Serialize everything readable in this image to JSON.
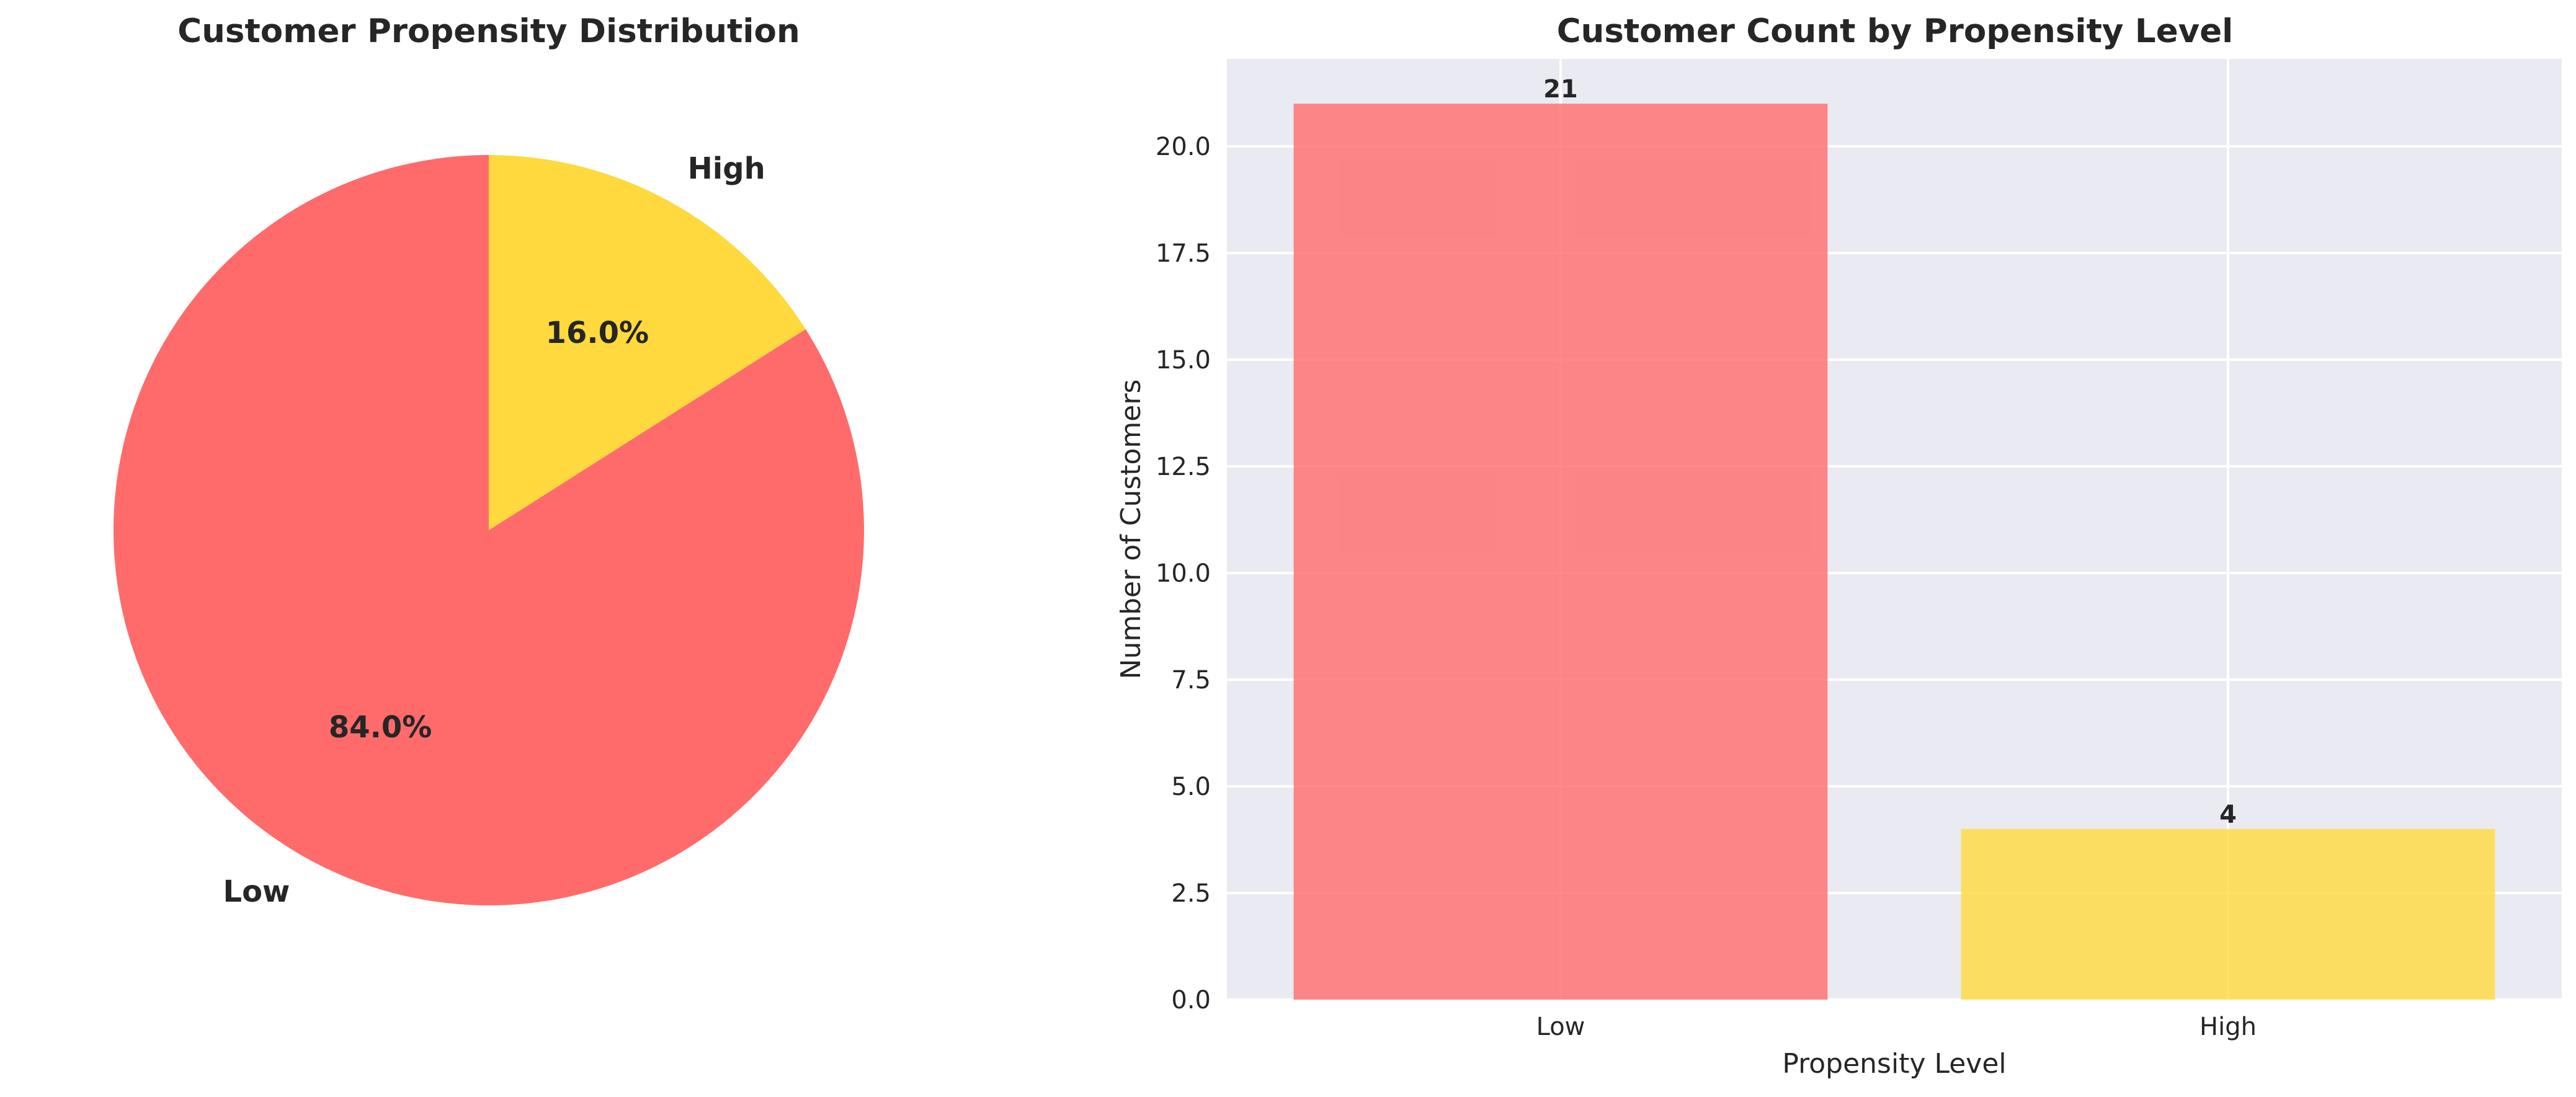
{
  "chart_data": [
    {
      "type": "pie",
      "title": "Customer Propensity Distribution",
      "labels": [
        "Low",
        "High"
      ],
      "values": [
        84.0,
        16.0
      ],
      "percent_labels": [
        "84.0%",
        "16.0%"
      ],
      "colors": [
        "#ff6b6b",
        "#ffd93d"
      ],
      "start_angle_deg": 90,
      "direction": "counterclockwise"
    },
    {
      "type": "bar",
      "title": "Customer Count by Propensity Level",
      "categories": [
        "Low",
        "High"
      ],
      "values": [
        21,
        4
      ],
      "value_labels": [
        "21",
        "4"
      ],
      "colors": [
        "#ff6b6b",
        "#ffd93d"
      ],
      "xlabel": "Propensity Level",
      "ylabel": "Number of Customers",
      "ylim": [
        0,
        22.05
      ],
      "yticks": [
        0,
        2.5,
        5,
        7.5,
        10,
        12.5,
        15,
        17.5,
        20
      ],
      "ytick_labels": [
        "0.0",
        "2.5",
        "5.0",
        "7.5",
        "10.0",
        "12.5",
        "15.0",
        "17.5",
        "20.0"
      ],
      "grid": true,
      "background": "#eaeaf2"
    }
  ]
}
